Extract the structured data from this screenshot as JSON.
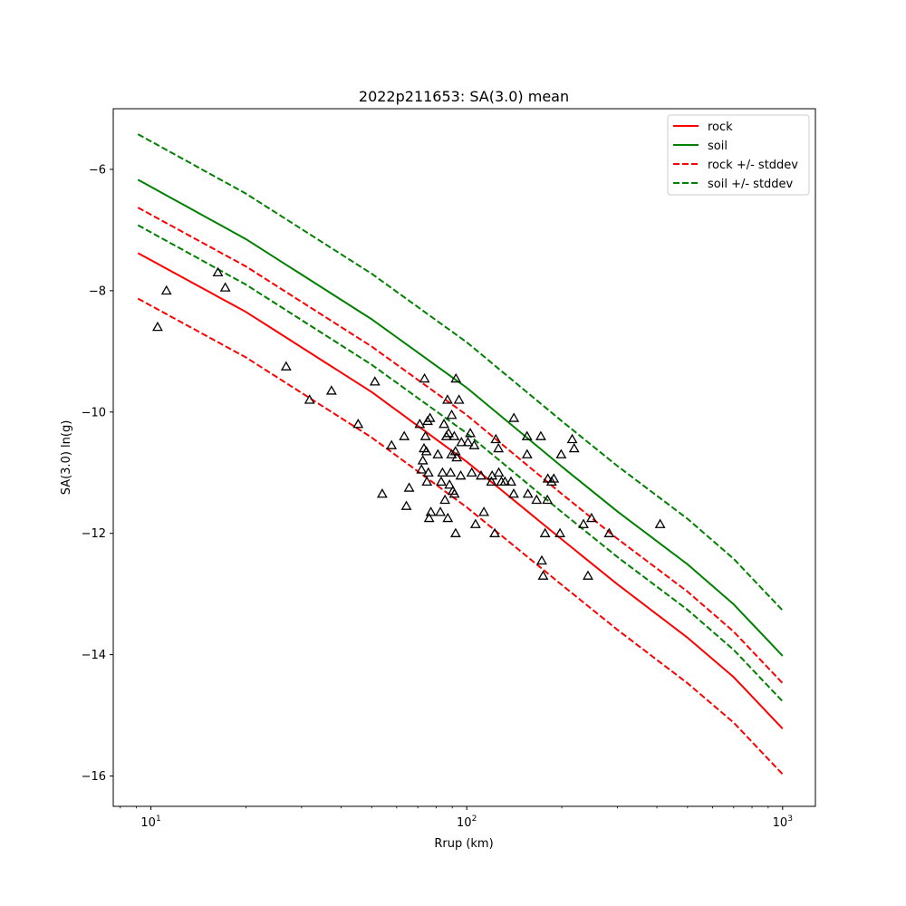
{
  "chart_data": {
    "type": "line",
    "title": "2022p211653: SA(3.0) mean",
    "xlabel": "Rrup (km)",
    "ylabel": "SA(3.0) ln(g)",
    "xscale": "log",
    "xlim": [
      7.6,
      1270
    ],
    "ylim": [
      -16.5,
      -5.0
    ],
    "x_ticks": [
      {
        "value": 10,
        "base": "10",
        "exp": "1"
      },
      {
        "value": 100,
        "base": "10",
        "exp": "2"
      },
      {
        "value": 1000,
        "base": "10",
        "exp": "3"
      }
    ],
    "y_ticks": [
      -6,
      -8,
      -10,
      -12,
      -14,
      -16
    ],
    "y_tick_labels": [
      "−6",
      "−8",
      "−10",
      "−12",
      "−14",
      "−16"
    ],
    "grid": false,
    "legend_position": "top-right",
    "legend": [
      {
        "label": "rock",
        "color": "#ff0000",
        "dash": false
      },
      {
        "label": "soil",
        "color": "#008000",
        "dash": false
      },
      {
        "label": "rock +/- stddev",
        "color": "#ff0000",
        "dash": true
      },
      {
        "label": "soil +/- stddev",
        "color": "#008000",
        "dash": true
      }
    ],
    "x": [
      9.1,
      20,
      50,
      100,
      200,
      300,
      500,
      700,
      1000
    ],
    "series": [
      {
        "name": "rock",
        "color": "#ff0000",
        "dash": false,
        "values": [
          -7.38,
          -8.35,
          -9.67,
          -10.82,
          -12.1,
          -12.84,
          -13.72,
          -14.37,
          -15.22
        ]
      },
      {
        "name": "soil",
        "color": "#008000",
        "dash": false,
        "values": [
          -6.17,
          -7.15,
          -8.47,
          -9.6,
          -10.9,
          -11.64,
          -12.51,
          -13.17,
          -14.02
        ]
      },
      {
        "name": "rock +/- stddev",
        "color": "#ff0000",
        "dash": true,
        "values": [
          -6.63,
          -7.6,
          -8.92,
          -10.05,
          -11.35,
          -12.09,
          -12.96,
          -13.62,
          -14.47
        ]
      },
      {
        "name": "rock +/- stddev",
        "color": "#ff0000",
        "dash": true,
        "values": [
          -8.13,
          -9.1,
          -10.42,
          -11.57,
          -12.85,
          -13.59,
          -14.47,
          -15.12,
          -15.97
        ]
      },
      {
        "name": "soil +/- stddev",
        "color": "#008000",
        "dash": true,
        "values": [
          -5.42,
          -6.4,
          -7.72,
          -8.85,
          -10.15,
          -10.89,
          -11.76,
          -12.42,
          -13.27
        ]
      },
      {
        "name": "soil +/- stddev",
        "color": "#008000",
        "dash": true,
        "values": [
          -6.92,
          -7.9,
          -9.22,
          -10.35,
          -11.65,
          -12.39,
          -13.26,
          -13.92,
          -14.77
        ]
      }
    ],
    "observations": {
      "marker": "triangle",
      "color": "#000000",
      "points": [
        [
          10.5,
          -8.6
        ],
        [
          11.2,
          -8.0
        ],
        [
          16.3,
          -7.7
        ],
        [
          17.2,
          -7.95
        ],
        [
          26.8,
          -9.25
        ],
        [
          31.8,
          -9.8
        ],
        [
          37.3,
          -9.65
        ],
        [
          45.3,
          -10.2
        ],
        [
          51.2,
          -9.5
        ],
        [
          54.0,
          -11.35
        ],
        [
          57.8,
          -10.55
        ],
        [
          63.4,
          -10.4
        ],
        [
          64.4,
          -11.55
        ],
        [
          65.7,
          -11.25
        ],
        [
          71.0,
          -10.2
        ],
        [
          71.9,
          -10.95
        ],
        [
          72.6,
          -10.8
        ],
        [
          73.2,
          -10.6
        ],
        [
          73.5,
          -9.45
        ],
        [
          74.0,
          -10.4
        ],
        [
          74.5,
          -10.65
        ],
        [
          74.8,
          -11.15
        ],
        [
          75.2,
          -10.15
        ],
        [
          75.6,
          -11.0
        ],
        [
          76.0,
          -11.75
        ],
        [
          76.5,
          -10.1
        ],
        [
          77.0,
          -11.65
        ],
        [
          81.0,
          -10.7
        ],
        [
          82.5,
          -11.65
        ],
        [
          83.0,
          -11.15
        ],
        [
          83.8,
          -11.0
        ],
        [
          84.7,
          -10.2
        ],
        [
          85.3,
          -11.45
        ],
        [
          86.2,
          -10.4
        ],
        [
          86.9,
          -9.8
        ],
        [
          87.1,
          -11.75
        ],
        [
          87.6,
          -10.35
        ],
        [
          88.2,
          -11.2
        ],
        [
          88.9,
          -11.0
        ],
        [
          89.5,
          -10.7
        ],
        [
          89.6,
          -10.05
        ],
        [
          90.4,
          -11.3
        ],
        [
          91.3,
          -10.4
        ],
        [
          91.4,
          -11.35
        ],
        [
          92.1,
          -10.65
        ],
        [
          92.2,
          -12.0
        ],
        [
          92.4,
          -9.45
        ],
        [
          93.0,
          -10.75
        ],
        [
          94.5,
          -9.8
        ],
        [
          95.7,
          -11.05
        ],
        [
          96.2,
          -10.5
        ],
        [
          100.9,
          -10.5
        ],
        [
          102.6,
          -10.35
        ],
        [
          103.7,
          -11.0
        ],
        [
          105.6,
          -10.55
        ],
        [
          106.6,
          -11.85
        ],
        [
          111.0,
          -11.05
        ],
        [
          113.3,
          -11.65
        ],
        [
          119.7,
          -11.15
        ],
        [
          120.3,
          -11.05
        ],
        [
          122.6,
          -12.0
        ],
        [
          123.6,
          -10.45
        ],
        [
          126.0,
          -10.6
        ],
        [
          126.3,
          -11.0
        ],
        [
          128.7,
          -11.15
        ],
        [
          132.1,
          -11.15
        ],
        [
          138.1,
          -11.15
        ],
        [
          140.8,
          -11.35
        ],
        [
          141.0,
          -10.1
        ],
        [
          155.2,
          -10.4
        ],
        [
          155.3,
          -10.7
        ],
        [
          156.2,
          -11.35
        ],
        [
          166.4,
          -11.45
        ],
        [
          171.6,
          -10.4
        ],
        [
          172.8,
          -12.45
        ],
        [
          174.5,
          -12.7
        ],
        [
          177.0,
          -12.0
        ],
        [
          180.0,
          -11.45
        ],
        [
          180.6,
          -11.1
        ],
        [
          185.6,
          -11.15
        ],
        [
          188.7,
          -11.1
        ],
        [
          197.3,
          -12.0
        ],
        [
          199.0,
          -10.7
        ],
        [
          215.7,
          -10.45
        ],
        [
          218.8,
          -10.6
        ],
        [
          234.2,
          -11.85
        ],
        [
          242.0,
          -12.7
        ],
        [
          248.3,
          -11.75
        ],
        [
          282.4,
          -12.0
        ],
        [
          409.5,
          -11.85
        ]
      ]
    }
  }
}
